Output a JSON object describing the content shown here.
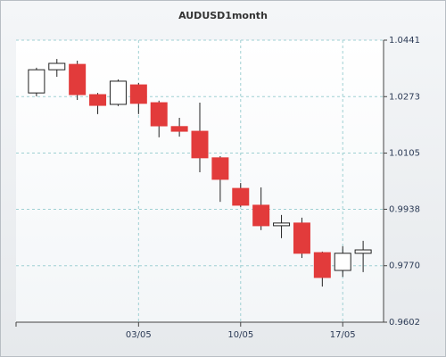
{
  "chart_data": {
    "type": "candlestick",
    "title": "AUDUSD1month",
    "categories": [
      null,
      null,
      null,
      null,
      null,
      "03/05",
      null,
      null,
      null,
      null,
      "10/05",
      null,
      null,
      null,
      null,
      "17/05",
      null
    ],
    "series": [
      {
        "open": [
          1.0284,
          1.0353,
          1.0369,
          1.0279,
          1.025,
          1.0308,
          1.0255,
          1.0184,
          1.017,
          1.0091,
          1.0,
          0.995,
          0.9889,
          0.9897,
          0.9809,
          0.9756,
          0.9807
        ],
        "high": [
          1.0359,
          1.0385,
          1.038,
          1.0284,
          1.0324,
          1.0314,
          1.0261,
          1.021,
          1.0255,
          1.0096,
          1.0016,
          1.0003,
          0.9921,
          0.9913,
          0.9812,
          0.9828,
          0.9844
        ],
        "low": [
          1.0274,
          1.0332,
          1.0263,
          1.0221,
          1.0245,
          1.0221,
          1.0152,
          1.0154,
          1.0048,
          0.996,
          0.9945,
          0.9876,
          0.9852,
          0.9793,
          0.9708,
          0.9737,
          0.9751
        ],
        "close": [
          1.0353,
          1.0372,
          1.0279,
          1.0247,
          1.0319,
          1.0253,
          1.0186,
          1.017,
          1.0091,
          1.0027,
          0.995,
          0.9889,
          0.9897,
          0.9807,
          0.9735,
          0.9807,
          0.9817
        ]
      }
    ],
    "up_color": "#ffffff",
    "down_color": "#e23b3b",
    "ylim": [
      0.9602,
      1.0441
    ],
    "yticks": [
      0.9602,
      {
        "value": 0.977,
        "label": "0.9770"
      },
      0.9938,
      1.0105,
      1.0273,
      1.0441
    ],
    "y_axis_side": "right",
    "grid": true
  }
}
